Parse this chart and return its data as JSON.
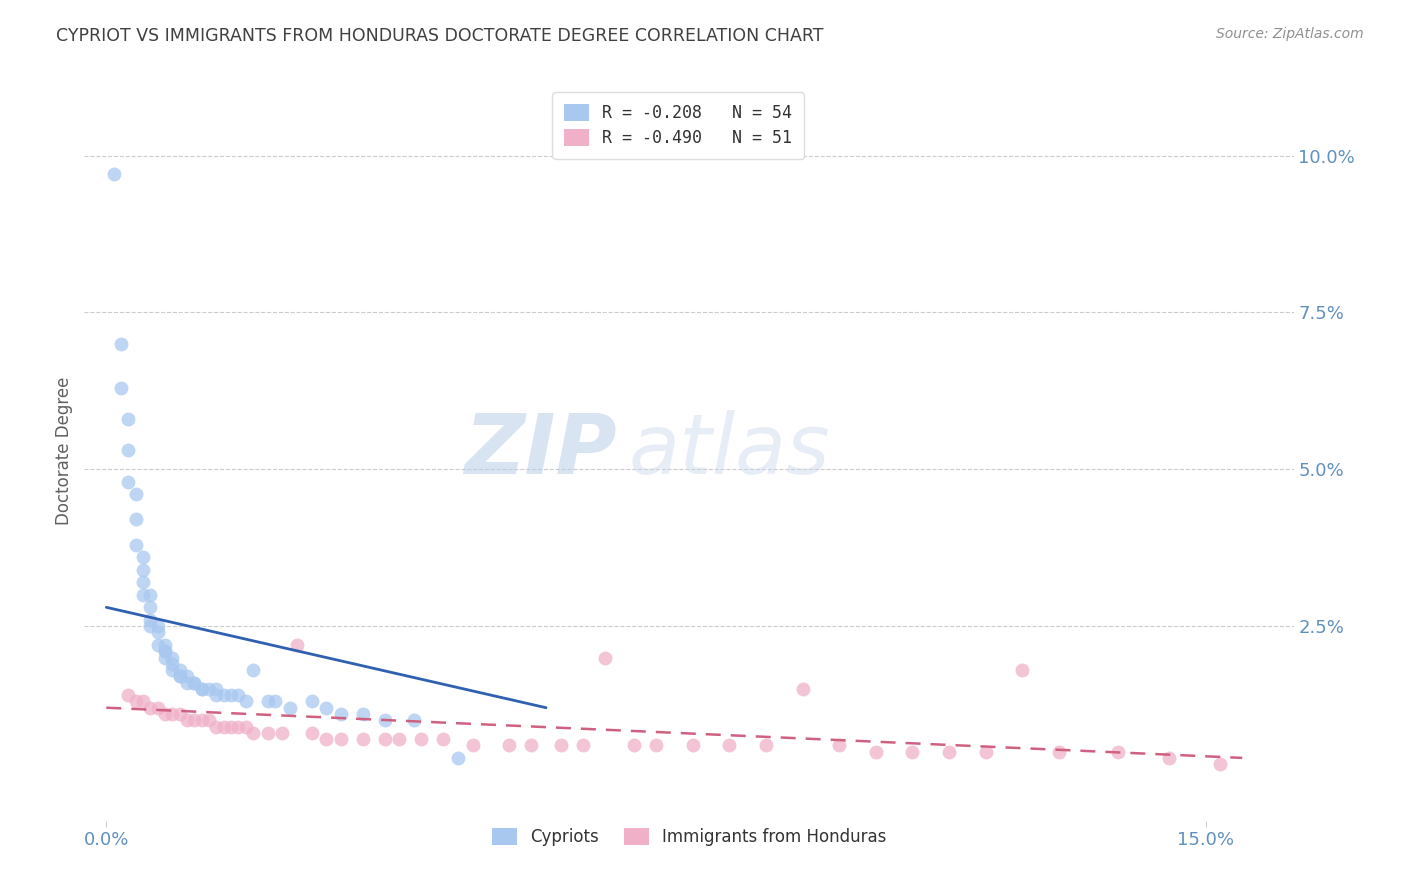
{
  "title": "CYPRIOT VS IMMIGRANTS FROM HONDURAS DOCTORATE DEGREE CORRELATION CHART",
  "source": "Source: ZipAtlas.com",
  "ylabel": "Doctorate Degree",
  "xlabel_ticks": [
    "0.0%",
    "15.0%"
  ],
  "ytick_labels": [
    "10.0%",
    "7.5%",
    "5.0%",
    "2.5%"
  ],
  "ytick_values": [
    0.1,
    0.075,
    0.05,
    0.025
  ],
  "xtick_values": [
    0.0,
    0.15
  ],
  "xlim": [
    -0.003,
    0.162
  ],
  "ylim": [
    -0.006,
    0.112
  ],
  "watermark_zip": "ZIP",
  "watermark_atlas": "atlas",
  "cypriot_color": "#a8c8f0",
  "honduras_color": "#f0b0c8",
  "cypriot_line_color": "#3060b0",
  "honduras_line_color": "#d06080",
  "background_color": "#ffffff",
  "grid_color": "#cccccc",
  "axis_label_color": "#6090c0",
  "title_color": "#404040",
  "ylabel_color": "#606060",
  "source_color": "#909090",
  "legend_R1": "R = -0.208",
  "legend_N1": "N = 54",
  "legend_R2": "R = -0.490",
  "legend_N2": "N = 51",
  "legend_color1": "#a8c8f0",
  "legend_color2": "#f0b0c8",
  "bottom_legend1": "Cypriots",
  "bottom_legend2": "Immigrants from Honduras",
  "cypriot_scatter_x": [
    0.001,
    0.002,
    0.002,
    0.003,
    0.003,
    0.003,
    0.004,
    0.004,
    0.004,
    0.005,
    0.005,
    0.005,
    0.005,
    0.006,
    0.006,
    0.006,
    0.006,
    0.007,
    0.007,
    0.007,
    0.008,
    0.008,
    0.008,
    0.008,
    0.009,
    0.009,
    0.009,
    0.01,
    0.01,
    0.01,
    0.011,
    0.011,
    0.012,
    0.012,
    0.013,
    0.013,
    0.014,
    0.015,
    0.015,
    0.016,
    0.017,
    0.018,
    0.019,
    0.02,
    0.022,
    0.023,
    0.025,
    0.028,
    0.03,
    0.032,
    0.035,
    0.038,
    0.042,
    0.048
  ],
  "cypriot_scatter_y": [
    0.097,
    0.07,
    0.063,
    0.058,
    0.053,
    0.048,
    0.046,
    0.042,
    0.038,
    0.036,
    0.034,
    0.032,
    0.03,
    0.03,
    0.028,
    0.026,
    0.025,
    0.025,
    0.024,
    0.022,
    0.022,
    0.021,
    0.021,
    0.02,
    0.02,
    0.019,
    0.018,
    0.018,
    0.017,
    0.017,
    0.017,
    0.016,
    0.016,
    0.016,
    0.015,
    0.015,
    0.015,
    0.015,
    0.014,
    0.014,
    0.014,
    0.014,
    0.013,
    0.018,
    0.013,
    0.013,
    0.012,
    0.013,
    0.012,
    0.011,
    0.011,
    0.01,
    0.01,
    0.004
  ],
  "honduras_scatter_x": [
    0.003,
    0.004,
    0.005,
    0.006,
    0.007,
    0.008,
    0.009,
    0.01,
    0.011,
    0.012,
    0.013,
    0.014,
    0.015,
    0.016,
    0.017,
    0.018,
    0.019,
    0.02,
    0.022,
    0.024,
    0.026,
    0.028,
    0.03,
    0.032,
    0.035,
    0.038,
    0.04,
    0.043,
    0.046,
    0.05,
    0.055,
    0.058,
    0.062,
    0.065,
    0.068,
    0.072,
    0.075,
    0.08,
    0.085,
    0.09,
    0.095,
    0.1,
    0.105,
    0.11,
    0.115,
    0.12,
    0.125,
    0.13,
    0.138,
    0.145,
    0.152
  ],
  "honduras_scatter_y": [
    0.014,
    0.013,
    0.013,
    0.012,
    0.012,
    0.011,
    0.011,
    0.011,
    0.01,
    0.01,
    0.01,
    0.01,
    0.009,
    0.009,
    0.009,
    0.009,
    0.009,
    0.008,
    0.008,
    0.008,
    0.022,
    0.008,
    0.007,
    0.007,
    0.007,
    0.007,
    0.007,
    0.007,
    0.007,
    0.006,
    0.006,
    0.006,
    0.006,
    0.006,
    0.02,
    0.006,
    0.006,
    0.006,
    0.006,
    0.006,
    0.015,
    0.006,
    0.005,
    0.005,
    0.005,
    0.005,
    0.018,
    0.005,
    0.005,
    0.004,
    0.003
  ],
  "cypriot_trendline_x": [
    0.0,
    0.06
  ],
  "cypriot_trendline_y": [
    0.028,
    0.012
  ],
  "honduras_trendline_x": [
    0.0,
    0.155
  ],
  "honduras_trendline_y": [
    0.012,
    0.004
  ]
}
